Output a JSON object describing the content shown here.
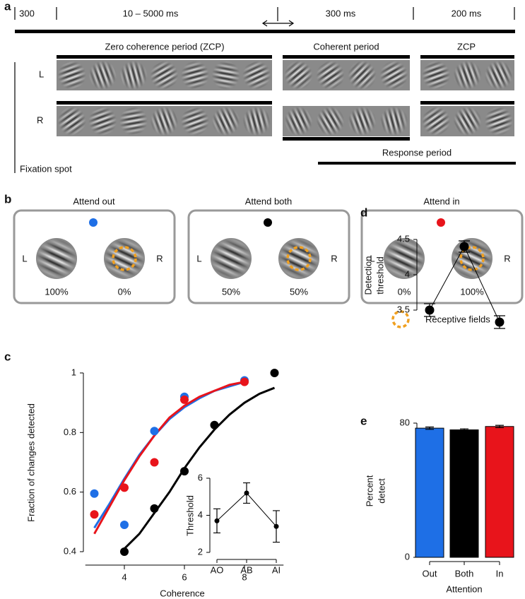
{
  "panel_a": {
    "label": "a",
    "durations": [
      "300",
      "10 – 5000 ms",
      "300 ms",
      "200 ms"
    ],
    "periods": [
      "Zero coherence period (ZCP)",
      "Coherent period",
      "ZCP"
    ],
    "eyes": [
      "L",
      "R"
    ],
    "fixation": "Fixation spot",
    "response": "Response period"
  },
  "panel_b": {
    "label": "b",
    "sides": [
      "L",
      "R"
    ],
    "legend": "Receptive fields",
    "conditions": [
      {
        "title": "Attend out",
        "color": "#1e6fe6",
        "left": "100%",
        "right": "0%"
      },
      {
        "title": "Attend both",
        "color": "#000000",
        "left": "50%",
        "right": "50%"
      },
      {
        "title": "Attend in",
        "color": "#e8141b",
        "left": "0%",
        "right": "100%"
      }
    ]
  },
  "chart_data": [
    {
      "label": "c",
      "type": "scatter",
      "xlabel": "Coherence",
      "ylabel": "Fraction of changes detected",
      "xlim": [
        2.7,
        9.3
      ],
      "ylim": [
        0.4,
        1
      ],
      "xticks": [
        4,
        6,
        8
      ],
      "yticks": [
        0.4,
        0.6,
        0.8,
        1
      ],
      "series": [
        {
          "color": "#1e6fe6",
          "x": [
            3,
            4,
            5,
            6,
            8
          ],
          "values": [
            0.595,
            0.49,
            0.805,
            0.92,
            0.975
          ],
          "fit_x": [
            3,
            3.5,
            4,
            4.5,
            5,
            5.5,
            6,
            6.5,
            7,
            7.5,
            8
          ],
          "fit_values": [
            0.48,
            0.56,
            0.645,
            0.725,
            0.79,
            0.845,
            0.885,
            0.915,
            0.94,
            0.955,
            0.97
          ]
        },
        {
          "color": "#000000",
          "x": [
            4,
            5,
            6,
            7,
            9
          ],
          "values": [
            0.4,
            0.545,
            0.67,
            0.825,
            1
          ],
          "fit_x": [
            4,
            4.5,
            5,
            5.5,
            6,
            6.5,
            7,
            7.5,
            8,
            8.5,
            9
          ],
          "fit_values": [
            0.41,
            0.46,
            0.53,
            0.6,
            0.68,
            0.75,
            0.81,
            0.86,
            0.9,
            0.93,
            0.95
          ]
        },
        {
          "color": "#e8141b",
          "x": [
            3,
            4,
            5,
            6,
            8
          ],
          "values": [
            0.525,
            0.615,
            0.7,
            0.91,
            0.97
          ],
          "fit_x": [
            3,
            3.5,
            4,
            4.5,
            5,
            5.5,
            6,
            6.5,
            7,
            7.5,
            8
          ],
          "fit_values": [
            0.46,
            0.55,
            0.64,
            0.72,
            0.79,
            0.85,
            0.89,
            0.92,
            0.94,
            0.96,
            0.97
          ]
        }
      ]
    },
    {
      "type": "errorbar",
      "ylabel": "Threshold",
      "categories": [
        "AO",
        "AB",
        "AI"
      ],
      "values": [
        3.7,
        5.2,
        3.4
      ],
      "errors": [
        0.65,
        0.55,
        0.85
      ],
      "color": "#000000",
      "ylim": [
        2,
        6
      ],
      "yticks": [
        2,
        4,
        6
      ]
    },
    {
      "label": "d",
      "type": "errorbar",
      "ylabel": [
        "Detection",
        "threshold"
      ],
      "values": [
        3.5,
        4.4,
        3.33
      ],
      "errors": [
        0.09,
        0.08,
        0.09
      ],
      "color": "#000000",
      "ylim": [
        3.5,
        4.5
      ],
      "yticks": [
        3.5,
        4,
        4.5
      ]
    },
    {
      "label": "e",
      "type": "bar",
      "ylabel": [
        "Percent",
        "detect"
      ],
      "xlabel": "Attention",
      "categories": [
        "Out",
        "Both",
        "In"
      ],
      "values": [
        77,
        76,
        78
      ],
      "errors": [
        0.7,
        0.6,
        0.7
      ],
      "colors": [
        "#1e6fe6",
        "#000000",
        "#e8141b"
      ],
      "ylim": [
        0,
        80
      ],
      "yticks": [
        0,
        80
      ]
    }
  ]
}
